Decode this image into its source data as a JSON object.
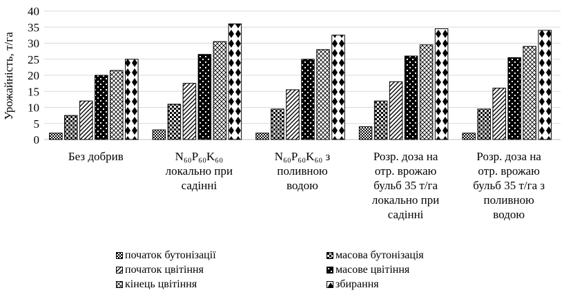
{
  "chart_data": {
    "type": "bar",
    "ylabel": "Урожайність, т/га",
    "ylim": [
      0,
      40
    ],
    "yticks": [
      0,
      5,
      10,
      15,
      20,
      25,
      30,
      35,
      40
    ],
    "grid": true,
    "legend_position": "bottom",
    "categories": [
      "Без добрив",
      "N60P60K60 локально при садінні",
      "N60P60K60 з поливною водою",
      "Розр. доза на отр. врожаю бульб 35 т/га локально при садінні",
      "Розр. доза на отр. врожаю бульб 35 т/га з поливною водою"
    ],
    "category_lines": [
      [
        "Без добрив"
      ],
      [
        "N₆₀P₆₀K₆₀",
        "локально при",
        "садінні"
      ],
      [
        "N₆₀P₆₀K₆₀ з",
        "поливною",
        "водою"
      ],
      [
        "Розр. доза на",
        "отр. врожаю",
        "бульб 35 т/га",
        "локально при",
        "садінні"
      ],
      [
        "Розр. доза на",
        "отр. врожаю",
        "бульб 35 т/га з",
        "поливною",
        "водою"
      ]
    ],
    "series": [
      {
        "name": "початок бутонізації",
        "pattern": "checker-small",
        "values": [
          2,
          3,
          2,
          4,
          2
        ]
      },
      {
        "name": "масова бутонізація",
        "pattern": "checker-dense",
        "values": [
          7.5,
          11,
          9.5,
          12,
          9.5
        ]
      },
      {
        "name": "початок цвітіння",
        "pattern": "diagonal",
        "values": [
          12,
          17.5,
          15.5,
          18,
          16
        ]
      },
      {
        "name": "масове цвітіння",
        "pattern": "checker-bold",
        "values": [
          20,
          26.5,
          25,
          26,
          25.5
        ]
      },
      {
        "name": "кінець цвітіння",
        "pattern": "crosshatch",
        "values": [
          21.5,
          30.5,
          28,
          29.5,
          29
        ]
      },
      {
        "name": "збирання",
        "pattern": "diamond",
        "values": [
          25,
          36,
          32.5,
          34.5,
          34
        ]
      }
    ]
  }
}
